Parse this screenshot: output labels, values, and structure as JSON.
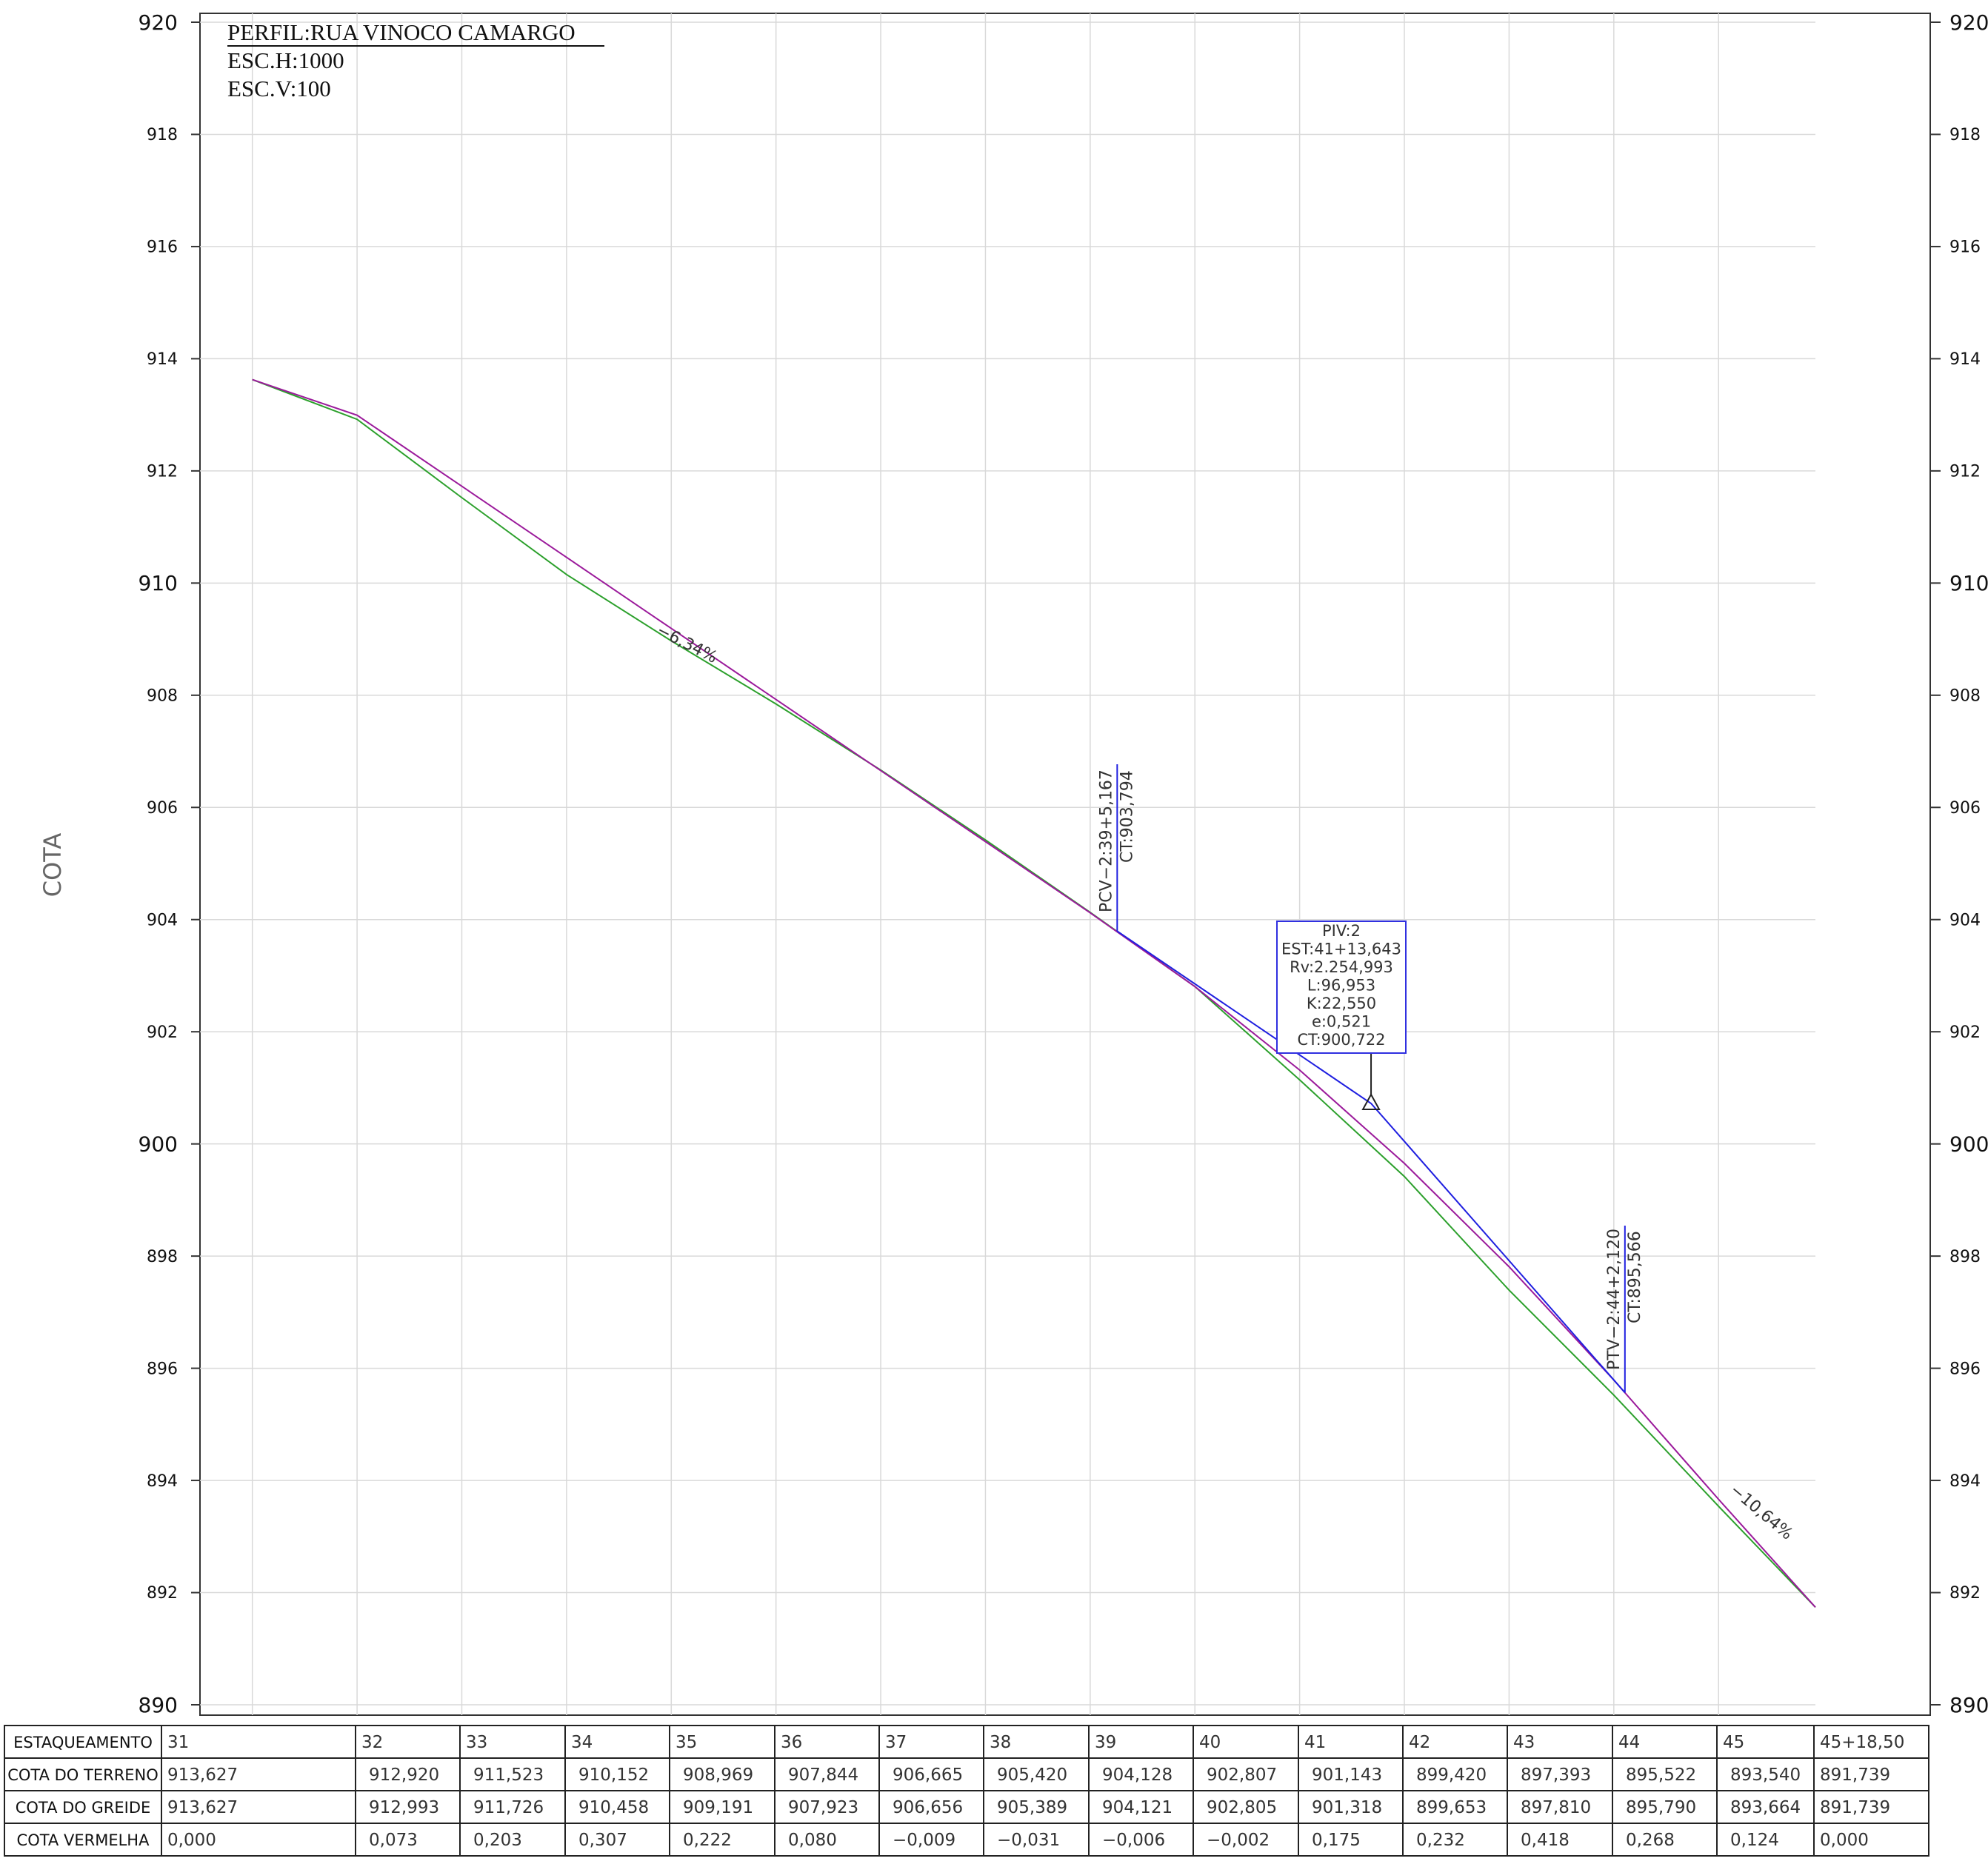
{
  "title": {
    "line1": "PERFIL:RUA VINOCO CAMARGO",
    "line2": "ESC.H:1000",
    "line3": "ESC.V:100"
  },
  "y_axis_label": "COTA",
  "colors": {
    "terrain": "#2ca02c",
    "grade": "#9b1a9b",
    "vertical_curve": "#1f1fe0",
    "grid": "#d9d9d9",
    "frame": "#333333",
    "text": "#222222"
  },
  "chart_data": {
    "type": "line",
    "x_unit": "estaca",
    "y_unit": "m",
    "ylim": [
      890,
      920
    ],
    "xlim": [
      30.5,
      45.925
    ],
    "y_ticks": [
      890,
      892,
      894,
      896,
      898,
      900,
      902,
      904,
      906,
      908,
      910,
      912,
      914,
      916,
      918,
      920
    ],
    "y_tick_labels": [
      "890",
      "892",
      "894",
      "896",
      "898",
      "900",
      "902",
      "904",
      "906",
      "908",
      "910",
      "912",
      "914",
      "916",
      "918",
      "920"
    ],
    "grid": true,
    "stations": [
      31,
      32,
      33,
      34,
      35,
      36,
      37,
      38,
      39,
      40,
      41,
      42,
      43,
      44,
      45,
      45.925
    ],
    "series": [
      {
        "color": "#2ca02c",
        "values": [
          913.627,
          912.92,
          911.523,
          910.152,
          908.969,
          907.844,
          906.665,
          905.42,
          904.128,
          902.807,
          901.143,
          899.42,
          897.393,
          895.522,
          893.54,
          891.739
        ]
      },
      {
        "color": "#9b1a9b",
        "values": [
          913.627,
          912.993,
          911.726,
          910.458,
          909.191,
          907.923,
          906.656,
          905.389,
          904.121,
          902.805,
          901.318,
          899.653,
          897.81,
          895.79,
          893.664,
          891.739
        ]
      }
    ],
    "vertical_curve": {
      "pcv": {
        "station": 39.258,
        "elevation": 903.794,
        "label1": "PCV−2:39+5,167",
        "label2": "CT:903,794"
      },
      "piv": {
        "station": 41.682,
        "elevation": 900.722
      },
      "ptv": {
        "station": 44.106,
        "elevation": 895.566,
        "label1": "PTV−2:44+2,120",
        "label2": "CT:895,566"
      }
    },
    "piv_box": {
      "lines": [
        "PIV:2",
        "EST:41+13,643",
        "Rv:2.254,993",
        "L:96,953",
        "K:22,550",
        "e:0,521",
        "CT:900,722"
      ]
    },
    "slopes": [
      {
        "label": "−6,34%",
        "station": 34.85,
        "elevation": 909.1
      },
      {
        "label": "−10,64%",
        "station": 45.1,
        "elevation": 893.8
      }
    ]
  },
  "table": {
    "rows": [
      {
        "header": "ESTAQUEAMENTO",
        "cells": [
          "31",
          "32",
          "33",
          "34",
          "35",
          "36",
          "37",
          "38",
          "39",
          "40",
          "41",
          "42",
          "43",
          "44",
          "45",
          "45+18,50"
        ]
      },
      {
        "header": "COTA DO TERRENO",
        "cells": [
          "913,627",
          "912,920",
          "911,523",
          "910,152",
          "908,969",
          "907,844",
          "906,665",
          "905,420",
          "904,128",
          "902,807",
          "901,143",
          "899,420",
          "897,393",
          "895,522",
          "893,540",
          "891,739"
        ]
      },
      {
        "header": "COTA DO GREIDE",
        "cells": [
          "913,627",
          "912,993",
          "911,726",
          "910,458",
          "909,191",
          "907,923",
          "906,656",
          "905,389",
          "904,121",
          "902,805",
          "901,318",
          "899,653",
          "897,810",
          "895,790",
          "893,664",
          "891,739"
        ]
      },
      {
        "header": "COTA VERMELHA",
        "cells": [
          "0,000",
          "0,073",
          "0,203",
          "0,307",
          "0,222",
          "0,080",
          "−0,009",
          "−0,031",
          "−0,006",
          "−0,002",
          "0,175",
          "0,232",
          "0,418",
          "0,268",
          "0,124",
          "0,000"
        ]
      }
    ]
  }
}
